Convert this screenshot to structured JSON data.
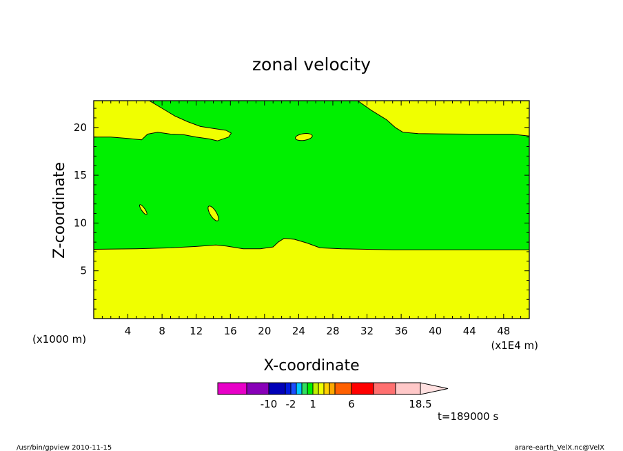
{
  "chart_data": {
    "type": "contour",
    "title": "zonal velocity",
    "xlabel": "X-coordinate",
    "ylabel": "Z-coordinate",
    "x_unit_label": "(x1E4 m)",
    "y_unit_label": "(x1000 m)",
    "xlim": [
      0,
      51
    ],
    "ylim": [
      0,
      22.8
    ],
    "x_ticks": [
      4,
      8,
      12,
      16,
      20,
      24,
      28,
      32,
      36,
      40,
      44,
      48
    ],
    "y_ticks": [
      5,
      10,
      15,
      20
    ],
    "x_minor_step": 1,
    "y_minor_step": 1,
    "colors": {
      "background_band": "#f0ff00",
      "middle_band": "#00f000",
      "contour_line": "#000000"
    },
    "regions": [
      {
        "level": "green",
        "outline": [
          [
            0,
            19
          ],
          [
            2,
            19
          ],
          [
            4,
            18.85
          ],
          [
            5.6,
            18.7
          ],
          [
            6.3,
            19.3
          ],
          [
            7.5,
            19.5
          ],
          [
            9,
            19.3
          ],
          [
            10.5,
            19.25
          ],
          [
            12,
            19.0
          ],
          [
            13.5,
            18.8
          ],
          [
            14.5,
            18.6
          ],
          [
            15.8,
            19.0
          ],
          [
            16.1,
            19.4
          ],
          [
            15.5,
            19.7
          ],
          [
            14,
            19.9
          ],
          [
            12.5,
            20.1
          ],
          [
            11,
            20.6
          ],
          [
            9.5,
            21.2
          ],
          [
            8.2,
            21.9
          ],
          [
            6.5,
            22.8
          ],
          [
            30.9,
            22.8
          ],
          [
            32.5,
            21.8
          ],
          [
            34.3,
            20.8
          ],
          [
            35.3,
            20.0
          ],
          [
            36.2,
            19.5
          ],
          [
            38,
            19.35
          ],
          [
            44,
            19.3
          ],
          [
            49,
            19.3
          ],
          [
            51,
            19.1
          ],
          [
            51,
            7.2
          ],
          [
            40,
            7.2
          ],
          [
            35,
            7.2
          ],
          [
            32,
            7.25
          ],
          [
            29,
            7.3
          ],
          [
            26.5,
            7.4
          ],
          [
            25,
            7.9
          ],
          [
            23.5,
            8.3
          ],
          [
            22.3,
            8.4
          ],
          [
            21.6,
            8.0
          ],
          [
            21.0,
            7.5
          ],
          [
            19.5,
            7.3
          ],
          [
            17.5,
            7.3
          ],
          [
            15.5,
            7.6
          ],
          [
            14.3,
            7.7
          ],
          [
            12,
            7.55
          ],
          [
            9,
            7.4
          ],
          [
            5,
            7.3
          ],
          [
            0,
            7.25
          ]
        ]
      }
    ],
    "islands": [
      {
        "center": [
          24.6,
          19.0
        ],
        "radius": [
          1.0,
          0.35
        ],
        "rotation": -8
      },
      {
        "center": [
          5.8,
          11.4
        ],
        "radius": [
          0.7,
          0.18
        ],
        "rotation": 55
      },
      {
        "center": [
          14.0,
          11.0
        ],
        "radius": [
          1.0,
          0.33
        ],
        "rotation": 58
      }
    ],
    "colorbar": {
      "colors": [
        "#e800c8",
        "#8800b8",
        "#0000b8",
        "#0018e0",
        "#1a4cff",
        "#00c8ff",
        "#30e060",
        "#00f000",
        "#c0f000",
        "#f0ff00",
        "#ffd000",
        "#ffa800",
        "#ff6000",
        "#ff0000",
        "#ff7070",
        "#ffc8c8",
        "#ffe0e0"
      ],
      "widths": [
        42,
        32,
        24,
        8,
        8,
        8,
        8,
        8,
        8,
        8,
        8,
        8,
        24,
        32,
        32,
        36,
        40
      ],
      "labels": [
        {
          "text": "-10",
          "value": -10
        },
        {
          "text": "-2",
          "value": -2
        },
        {
          "text": "1",
          "value": 1
        },
        {
          "text": "6",
          "value": 6
        },
        {
          "text": "18.5",
          "value": 18.5
        }
      ],
      "label_after_segment": {
        "-10": 1,
        "-2": 3,
        "1": 7,
        "6": 12,
        "18.5": 15
      }
    },
    "time_label": "t=189000 s"
  },
  "footer": {
    "left": "/usr/bin/gpview   2010-11-15",
    "right": "arare-earth_VelX.nc@VelX"
  }
}
